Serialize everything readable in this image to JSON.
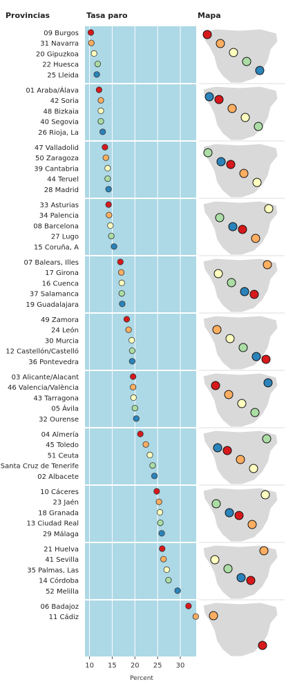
{
  "headers": {
    "provinces": "Provincias",
    "rate": "Tasa paro",
    "map": "Mapa"
  },
  "chart_data": {
    "type": "scatter",
    "xlabel": "Percent",
    "xlim": [
      9,
      33.5
    ],
    "xticks": [
      10,
      15,
      20,
      25,
      30
    ],
    "grid": true,
    "colors": [
      "#d7191c",
      "#fdae61",
      "#ffffbf",
      "#abdda4",
      "#2b83ba"
    ],
    "groups": [
      {
        "provinces": [
          "09 Burgos",
          "31 Navarra",
          "20 Gipuzkoa",
          "22 Huesca",
          "25 Lleida"
        ],
        "values": [
          10.3,
          10.4,
          11.0,
          11.8,
          11.6
        ]
      },
      {
        "provinces": [
          "01 Araba/Álava",
          "42 Soria",
          "48 Bizkaia",
          "40 Segovia",
          "26 Rioja, La"
        ],
        "values": [
          12.1,
          12.5,
          12.5,
          12.5,
          12.9
        ]
      },
      {
        "provinces": [
          "47 Valladolid",
          "50 Zaragoza",
          "39 Cantabria",
          "44 Teruel",
          "28 Madrid"
        ],
        "values": [
          13.4,
          13.6,
          14.0,
          14.0,
          14.2
        ]
      },
      {
        "provinces": [
          "33 Asturias",
          "34 Palencia",
          "08 Barcelona",
          "27 Lugo",
          "15 Coruña, A"
        ],
        "values": [
          14.2,
          14.3,
          14.6,
          14.8,
          15.4
        ]
      },
      {
        "provinces": [
          "07 Balears, Illes",
          "17 Girona",
          "16 Cuenca",
          "37 Salamanca",
          "19 Guadalajara"
        ],
        "values": [
          16.8,
          17.0,
          17.1,
          17.1,
          17.2
        ]
      },
      {
        "provinces": [
          "49 Zamora",
          "24 León",
          "30 Murcia",
          "12 Castellón/Castelló",
          "36 Pontevedra"
        ],
        "values": [
          18.2,
          18.6,
          19.3,
          19.4,
          19.4
        ]
      },
      {
        "provinces": [
          "03 Alicante/Alacant",
          "46 Valencia/València",
          "43 Tarragona",
          "05 Ávila",
          "32 Ourense"
        ],
        "values": [
          19.6,
          19.6,
          19.7,
          20.0,
          20.3
        ]
      },
      {
        "provinces": [
          "04 Almería",
          "45 Toledo",
          "51 Ceuta",
          "38 Santa Cruz de Tenerife",
          "02 Albacete"
        ],
        "values": [
          21.2,
          22.4,
          23.3,
          23.9,
          24.3
        ]
      },
      {
        "provinces": [
          "10 Cáceres",
          "23 Jaén",
          "18 Granada",
          "13 Ciudad Real",
          "29 Málaga"
        ],
        "values": [
          24.8,
          25.3,
          25.5,
          25.6,
          25.9
        ]
      },
      {
        "provinces": [
          "21 Huelva",
          "41 Sevilla",
          "35 Palmas, Las",
          "14 Córdoba",
          "52 Melilla"
        ],
        "values": [
          26.0,
          26.3,
          27.0,
          27.4,
          29.4
        ]
      },
      {
        "provinces": [
          "06 Badajoz",
          "11 Cádiz"
        ],
        "values": [
          31.8,
          33.4
        ]
      }
    ]
  }
}
